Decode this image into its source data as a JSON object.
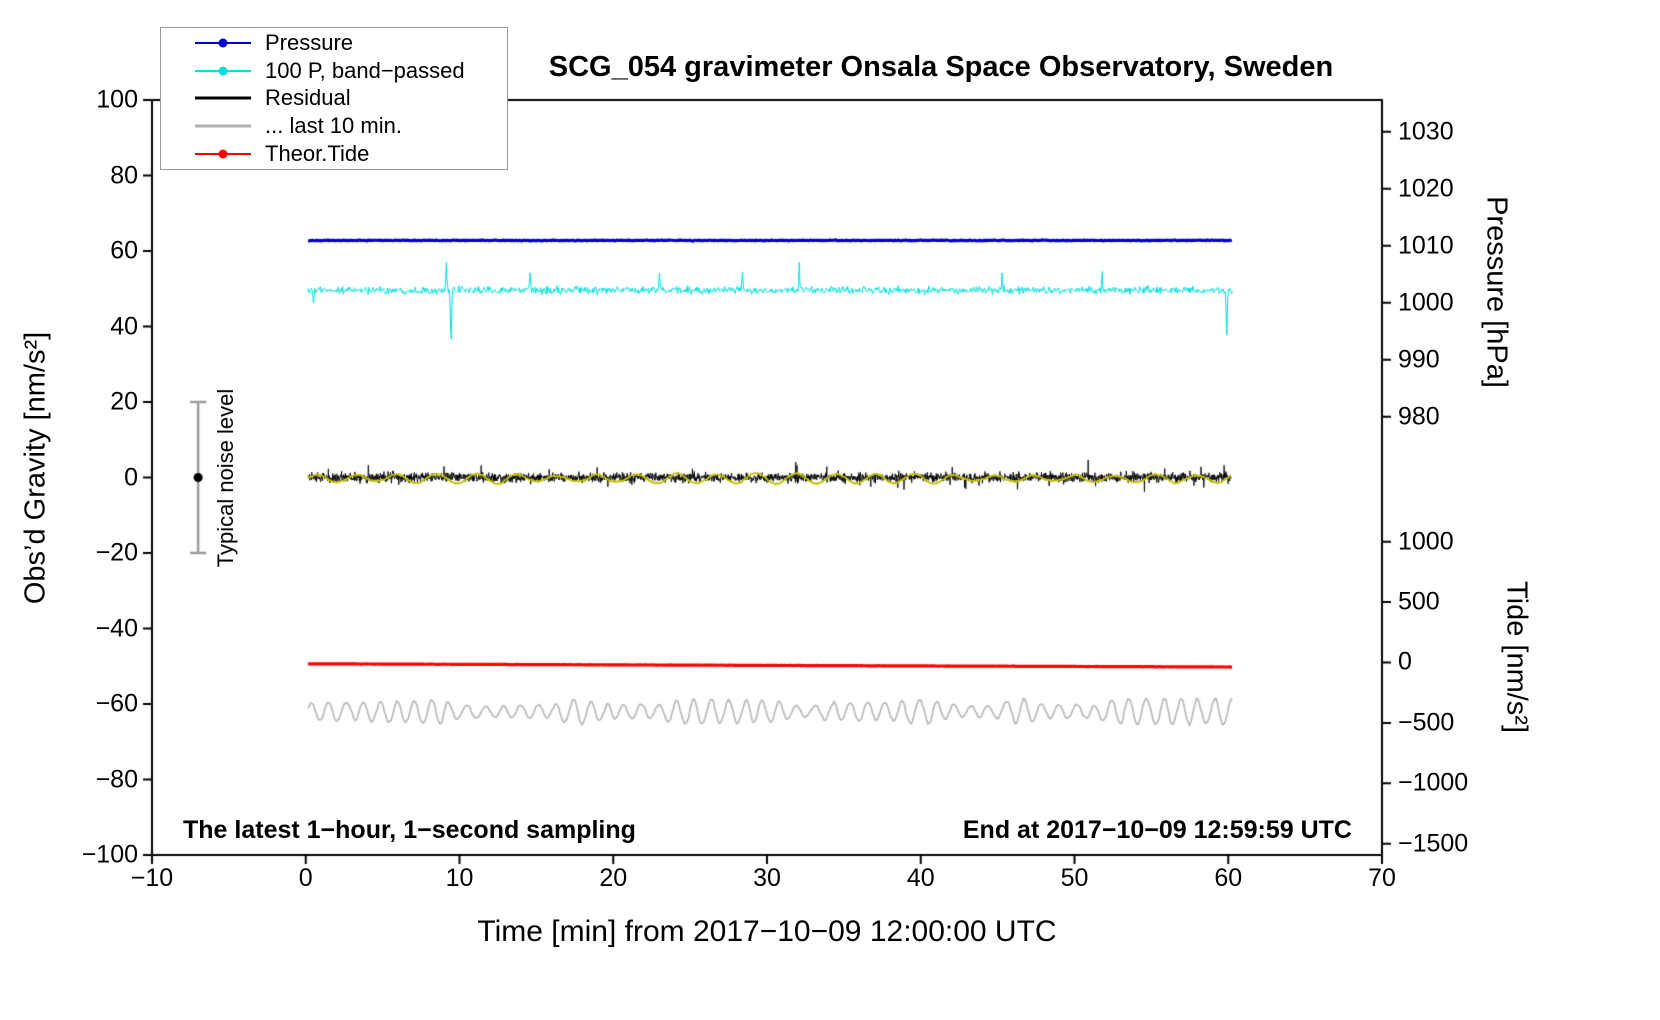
{
  "chart_data": {
    "type": "line",
    "title": "SCG_054 gravimeter Onsala Space Observatory, Sweden",
    "xlabel": "Time [min] from 2017−10−09 12:00:00 UTC",
    "ylabel_left": "Obs’d Gravity [nm/s²]",
    "ylabel_pressure": "Pressure [hPa]",
    "ylabel_tide": "Tide [nm/s²]",
    "annotations": {
      "noise_level_label": "Typical noise level",
      "noise_bar": {
        "x": -7,
        "y_center": 0,
        "y_half_range": 20
      },
      "bottom_left": "The latest 1−hour, 1−second sampling",
      "bottom_right": "End at 2017−10−09 12:59:59 UTC"
    },
    "axes": {
      "xlim": [
        -10,
        70
      ],
      "ylim_left": [
        -100,
        100
      ],
      "x_ticks": [
        {
          "v": -10,
          "label": "−10"
        },
        {
          "v": 0,
          "label": "0"
        },
        {
          "v": 10,
          "label": "10"
        },
        {
          "v": 20,
          "label": "20"
        },
        {
          "v": 30,
          "label": "30"
        },
        {
          "v": 40,
          "label": "40"
        },
        {
          "v": 50,
          "label": "50"
        },
        {
          "v": 60,
          "label": "60"
        },
        {
          "v": 70,
          "label": "70"
        }
      ],
      "y_ticks_left": [
        {
          "v": 100,
          "label": "100"
        },
        {
          "v": 80,
          "label": "80"
        },
        {
          "v": 60,
          "label": "60"
        },
        {
          "v": 40,
          "label": "40"
        },
        {
          "v": 20,
          "label": "20"
        },
        {
          "v": 0,
          "label": "0"
        },
        {
          "v": -20,
          "label": "−20"
        },
        {
          "v": -40,
          "label": "−40"
        },
        {
          "v": -60,
          "label": "−60"
        },
        {
          "v": -80,
          "label": "−80"
        },
        {
          "v": -100,
          "label": "−100"
        }
      ],
      "pressure_ticks": [
        {
          "label": "1030",
          "gravity": 91.6
        },
        {
          "label": "1020",
          "gravity": 76.5
        },
        {
          "label": "1010",
          "gravity": 61.4
        },
        {
          "label": "1000",
          "gravity": 46.3
        },
        {
          "label": "990",
          "gravity": 31.2
        },
        {
          "label": "980",
          "gravity": 16.1
        }
      ],
      "tide_ticks": [
        {
          "label": "1000",
          "gravity": -17
        },
        {
          "label": "500",
          "gravity": -33
        },
        {
          "label": "0",
          "gravity": -49
        },
        {
          "label": "−500",
          "gravity": -65
        },
        {
          "label": "−1000",
          "gravity": -81
        },
        {
          "label": "−1500",
          "gravity": -97
        }
      ]
    },
    "legend": [
      {
        "label": "Pressure",
        "color": "#0000cd",
        "marker": "line-dot"
      },
      {
        "label": "100 P, band−passed",
        "color": "#00dede",
        "marker": "line-dot"
      },
      {
        "label": "Residual",
        "color": "#000000",
        "marker": "line"
      },
      {
        "label": "... last 10 min.",
        "color": "#b0b0b0",
        "marker": "line"
      },
      {
        "label": "Theor.Tide",
        "color": "#ff0000",
        "marker": "line-dot"
      }
    ],
    "series": [
      {
        "name": "100 P, band−passed",
        "color": "#00dede",
        "width": 1,
        "x_range": [
          0.15,
          60.3
        ],
        "baseline": 49.6,
        "noise": 1.7,
        "step": 0.045,
        "spikes": [
          {
            "x": 0.5,
            "dy": -4,
            "w": 0.05
          },
          {
            "x": 9.15,
            "dy": 7,
            "w": 0.05
          },
          {
            "x": 9.45,
            "dy": -15.5,
            "w": 0.05
          },
          {
            "x": 14.6,
            "dy": 4.5,
            "w": 0.04
          },
          {
            "x": 23.0,
            "dy": 4.5,
            "w": 0.04
          },
          {
            "x": 28.4,
            "dy": 5.5,
            "w": 0.04
          },
          {
            "x": 32.1,
            "dy": 7.5,
            "w": 0.04
          },
          {
            "x": 45.3,
            "dy": 5,
            "w": 0.04
          },
          {
            "x": 51.8,
            "dy": 5,
            "w": 0.04
          },
          {
            "x": 59.9,
            "dy": -12,
            "w": 0.05
          }
        ],
        "summary": "band-passed pressure ×100, ±3 nm/s² about +50 on gravity scale, large spikes near 9.5 and 60 min"
      },
      {
        "name": "Pressure",
        "color": "#0000cd",
        "width": 3.2,
        "x_range": [
          0.15,
          60.3
        ],
        "baseline": 62.8,
        "noise": 0.18,
        "step": 0.08,
        "summary": "≈1011 hPa, essentially constant over the hour"
      },
      {
        "name": "Residual",
        "color": "#000000",
        "width": 0.9,
        "x_range": [
          0.15,
          60.2
        ],
        "baseline": 0,
        "noise": 2.1,
        "step": 0.02,
        "spike_p": 0.02,
        "summary": "high-frequency residual, ±5 nm/s² about 0"
      },
      {
        "name": "Residual smoothed",
        "color": "#c2c200",
        "width": 1.8,
        "x_range": [
          0.15,
          60.2
        ],
        "baseline": -0.3,
        "noise": 0.25,
        "step": 0.05,
        "smooth": true,
        "wave_amp": 0.9,
        "phase_step": 0.12,
        "summary": "smoothed residual riding on the black trace, ≈0"
      },
      {
        "name": "... last 10 min.",
        "color": "#b8b8b8",
        "width": 1.7,
        "x_range": [
          0.15,
          60.3
        ],
        "baseline": -62.0,
        "noise": 0.35,
        "step": 0.09,
        "smooth": true,
        "wave_amp": 2.2,
        "phase_step": 0.5,
        "summary": "low-passed residual of the last 10 min, displayed offset near −62, waves ±3 nm/s²"
      },
      {
        "name": "Theor.Tide",
        "color": "#ff0000",
        "width": 3.2,
        "x_range": [
          0.15,
          60.3
        ],
        "line_from": -49.35,
        "line_to": -50.2,
        "noise": 0.04,
        "step": 0.1,
        "summary": "theoretical tide ≈0 → −40 nm/s² on the tide scale, slowly decreasing"
      }
    ]
  }
}
